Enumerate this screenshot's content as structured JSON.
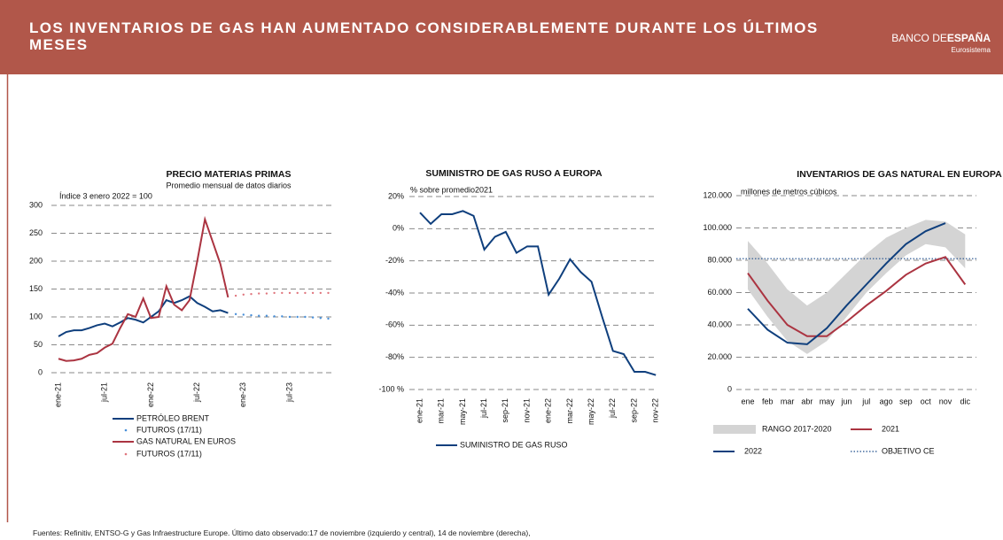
{
  "header": {
    "title": "LOS INVENTARIOS DE GAS HAN AUMENTADO CONSIDERABLEMENTE DURANTE LOS ÚLTIMOS MESES",
    "logo_light": "BANCO DE",
    "logo_bold": "ESPAÑA",
    "logo_sub": "Eurosistema"
  },
  "footer": "Fuentes: Refinitiv, ENTSO-G y Gas Infraestructure Europe. Último dato observado:17 de noviembre (izquierdo y central), 14 de noviembre (derecha),",
  "chart_data": [
    {
      "type": "line",
      "title": "PRECIO MATERIAS PRIMAS",
      "subtitle": "Promedio mensual de datos diarios",
      "y_label": "Índice 3 enero 2022 = 100",
      "categories": [
        "ene-21",
        null,
        null,
        null,
        null,
        null,
        "jul-21",
        null,
        null,
        null,
        null,
        null,
        "ene-22",
        null,
        null,
        null,
        null,
        null,
        "jul-22",
        null,
        null,
        null,
        null,
        null,
        "ene-23",
        null,
        null,
        null,
        null,
        null,
        "jul-23",
        null,
        null,
        null,
        null,
        null
      ],
      "ylim": [
        0,
        300
      ],
      "yticks": [
        0,
        50,
        100,
        150,
        200,
        250,
        300
      ],
      "grid": true,
      "series": [
        {
          "name": "PETRÓLEO BRENT",
          "color": "#0f3f7d",
          "style": "line",
          "values": [
            65,
            73,
            76,
            76,
            80,
            85,
            88,
            83,
            90,
            98,
            95,
            90,
            100,
            110,
            130,
            125,
            130,
            137,
            125,
            118,
            110,
            112,
            107,
            null,
            null,
            null,
            null,
            null,
            null,
            null,
            null,
            null,
            null,
            null,
            null,
            null
          ]
        },
        {
          "name": "FUTUROS (17/11)",
          "color": "#4a90d9",
          "style": "dots",
          "values": [
            null,
            null,
            null,
            null,
            null,
            null,
            null,
            null,
            null,
            null,
            null,
            null,
            null,
            null,
            null,
            null,
            null,
            null,
            null,
            null,
            null,
            null,
            null,
            105,
            104,
            103,
            102,
            102,
            101,
            101,
            100,
            100,
            100,
            99,
            98,
            97
          ]
        },
        {
          "name": "GAS NATURAL EN EUROS",
          "color": "#ab3441",
          "style": "line",
          "values": [
            25,
            21,
            22,
            25,
            32,
            35,
            45,
            52,
            80,
            105,
            100,
            133,
            98,
            100,
            155,
            122,
            112,
            130,
            200,
            275,
            235,
            195,
            135,
            null,
            null,
            null,
            null,
            null,
            null,
            null,
            null,
            null,
            null,
            null,
            null,
            null
          ]
        },
        {
          "name": "FUTUROS (17/11)",
          "color": "#e0767e",
          "style": "dots",
          "values": [
            null,
            null,
            null,
            null,
            null,
            null,
            null,
            null,
            null,
            null,
            null,
            null,
            null,
            null,
            null,
            null,
            null,
            null,
            null,
            null,
            null,
            null,
            null,
            138,
            140,
            141,
            142,
            142,
            143,
            143,
            143,
            143,
            143,
            143,
            143,
            143
          ]
        }
      ]
    },
    {
      "type": "line",
      "title": "SUMINISTRO DE GAS RUSO A EUROPA",
      "y_label": "% sobre promedio2021",
      "categories": [
        "ene-21",
        null,
        "mar-21",
        null,
        "may-21",
        null,
        "jul-21",
        null,
        "sep-21",
        null,
        "nov-21",
        null,
        "ene-22",
        null,
        "mar-22",
        null,
        "may-22",
        null,
        "jul-22",
        null,
        "sep-22",
        null,
        "nov-22"
      ],
      "ylim": [
        -100,
        20
      ],
      "yticks": [
        {
          "value": -100,
          "label": "-100 %"
        },
        {
          "value": -80,
          "label": "-80%"
        },
        {
          "value": -60,
          "label": "-60%"
        },
        {
          "value": -40,
          "label": "-40%"
        },
        {
          "value": -20,
          "label": "-20%"
        },
        {
          "value": 0,
          "label": "0%"
        },
        {
          "value": 20,
          "label": "20%"
        }
      ],
      "grid": true,
      "series": [
        {
          "name": "SUMINISTRO DE GAS RUSO",
          "color": "#0f3f7d",
          "style": "line",
          "values": [
            10,
            3,
            9,
            9,
            11,
            8,
            -13,
            -5,
            -2,
            -15,
            -11,
            -11,
            -41,
            -31,
            -19,
            -27,
            -33,
            -55,
            -76,
            -78,
            -89,
            -89,
            -91
          ]
        }
      ]
    },
    {
      "type": "line",
      "title": "INVENTARIOS DE GAS NATURAL EN EUROPA",
      "y_label": "millones de metros cúbicos",
      "categories": [
        "ene",
        "feb",
        "mar",
        "abr",
        "may",
        "jun",
        "jul",
        "ago",
        "sep",
        "oct",
        "nov",
        "dic"
      ],
      "ylim": [
        0,
        120000
      ],
      "yticks": [
        0,
        {
          "value": 20000,
          "label": "20.000"
        },
        {
          "value": 40000,
          "label": "40.000"
        },
        {
          "value": 60000,
          "label": "60.000"
        },
        {
          "value": 80000,
          "label": "80.000"
        },
        {
          "value": 100000,
          "label": "100.000"
        },
        {
          "value": 120000,
          "label": "120.000"
        }
      ],
      "grid": true,
      "band": {
        "name": "RANGO 2017-2020",
        "color": "#d4d4d4",
        "low": [
          62000,
          45000,
          30000,
          22000,
          30000,
          45000,
          60000,
          72000,
          83000,
          90000,
          88000,
          75000
        ],
        "high": [
          92000,
          78000,
          62000,
          52000,
          60000,
          72000,
          84000,
          94000,
          100000,
          105000,
          104000,
          96000
        ]
      },
      "series": [
        {
          "name": "2021",
          "color": "#ab3441",
          "style": "line",
          "values": [
            72000,
            55000,
            40000,
            33000,
            33000,
            42000,
            52000,
            61000,
            71000,
            78000,
            82000,
            65000
          ]
        },
        {
          "name": "2022",
          "color": "#0f3f7d",
          "style": "line",
          "values": [
            50000,
            37000,
            29000,
            28000,
            38000,
            52000,
            65000,
            78000,
            90000,
            98000,
            103000,
            null
          ]
        }
      ],
      "reference_line": {
        "name": "OBJETIVO CE",
        "color": "#1f4e8c",
        "value": 81000
      }
    }
  ]
}
